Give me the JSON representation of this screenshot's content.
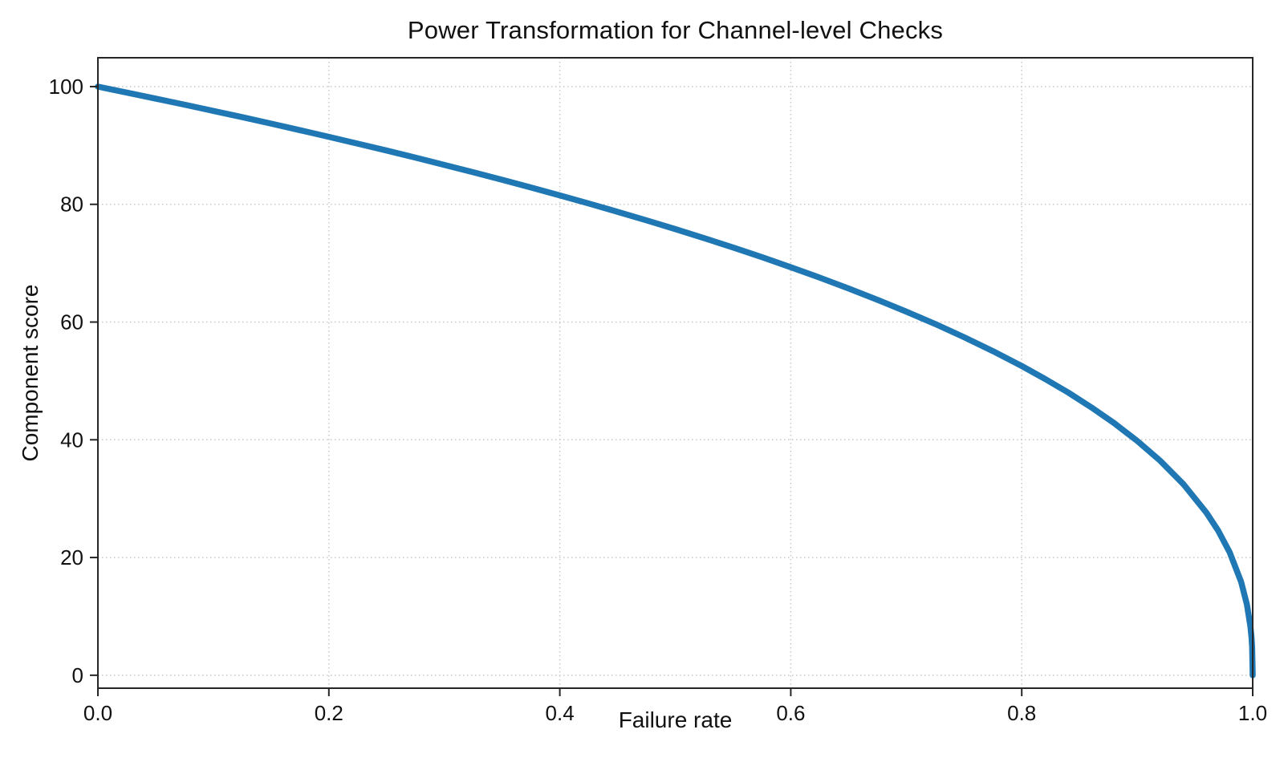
{
  "chart_data": {
    "type": "line",
    "title": "Power Transformation for Channel-level Checks",
    "xlabel": "Failure rate",
    "ylabel": "Component score",
    "xlim": [
      0.0,
      1.0
    ],
    "ylim": [
      -2.2,
      104.9
    ],
    "grid": "dotted",
    "legend": "none",
    "x_tick_labels": [
      "0.0",
      "0.2",
      "0.4",
      "0.6",
      "0.8",
      "1.0"
    ],
    "x_tick_values": [
      0.0,
      0.2,
      0.4,
      0.6,
      0.8,
      1.0
    ],
    "y_tick_labels": [
      "0",
      "20",
      "40",
      "60",
      "80",
      "100"
    ],
    "y_tick_values": [
      0,
      20,
      40,
      60,
      80,
      100
    ],
    "colors": {
      "line": "#1f77b4",
      "grid": "#c8c8c8",
      "spine": "#262626",
      "text": "#111111",
      "background": "#ffffff"
    },
    "line_width": 7.5,
    "series": [
      {
        "name": "Component score",
        "estimated_model": "y = 100 * (1 - x)^0.4",
        "power_exponent": 0.4,
        "x": [
          0,
          0.025,
          0.05,
          0.075,
          0.1,
          0.125,
          0.15,
          0.175,
          0.2,
          0.225,
          0.25,
          0.275,
          0.3,
          0.325,
          0.35,
          0.375,
          0.4,
          0.425,
          0.45,
          0.475,
          0.5,
          0.525,
          0.55,
          0.575,
          0.6,
          0.625,
          0.65,
          0.675,
          0.7,
          0.725,
          0.75,
          0.775,
          0.8,
          0.82,
          0.84,
          0.86,
          0.88,
          0.9,
          0.92,
          0.94,
          0.96,
          0.97,
          0.98,
          0.99,
          0.995,
          0.998,
          0.999,
          0.9995,
          1.0
        ],
        "y": [
          100,
          98.99,
          97.97,
          96.93,
          95.87,
          94.8,
          93.71,
          92.59,
          91.46,
          90.31,
          89.13,
          87.93,
          86.7,
          85.45,
          84.17,
          82.86,
          81.52,
          80.14,
          78.73,
          77.28,
          75.79,
          74.25,
          72.66,
          71.02,
          69.31,
          67.55,
          65.71,
          63.79,
          61.78,
          59.67,
          57.43,
          55.07,
          52.53,
          50.36,
          48.05,
          45.55,
          42.83,
          39.81,
          36.41,
          32.45,
          27.6,
          24.6,
          20.91,
          15.85,
          12.01,
          8.33,
          6.31,
          4.78,
          0
        ]
      }
    ]
  }
}
